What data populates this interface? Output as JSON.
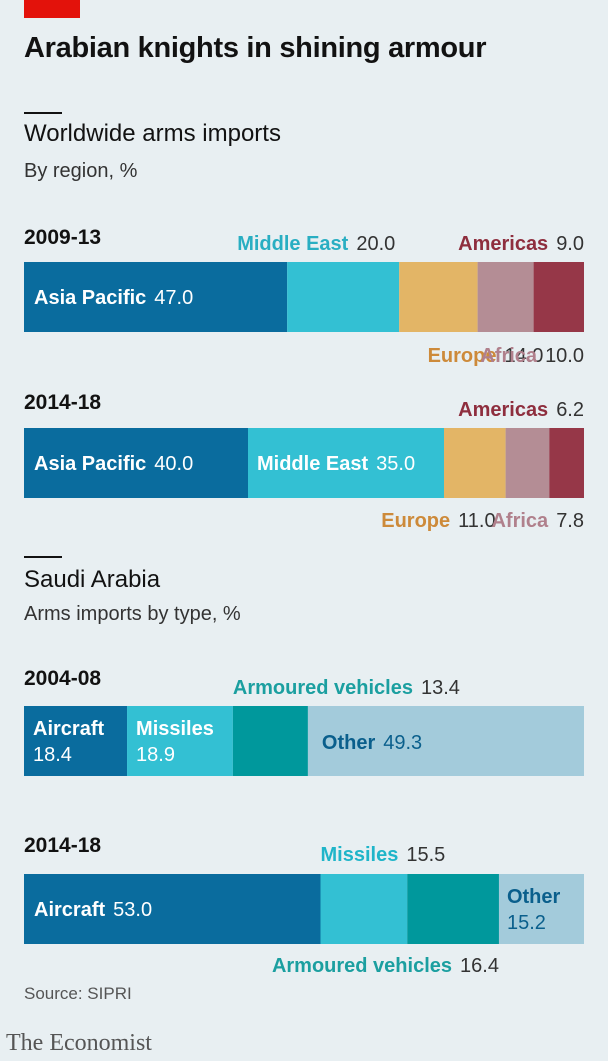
{
  "headline": "Arabian knights in shining armour",
  "footer": {
    "source": "Source: SIPRI",
    "logo": "The Economist"
  },
  "colors": {
    "brand_red": "#e3120b",
    "asia_pacific": "#0a6c9e",
    "middle_east": "#33c0d3",
    "europe": "#e3b566",
    "africa": "#b48d95",
    "americas": "#963748",
    "aircraft": "#0a6c9e",
    "missiles": "#33c0d3",
    "armoured_vehicles": "#00989c",
    "other": "#a3cbdb"
  },
  "chart_data": [
    {
      "type": "bar",
      "title": "Worldwide arms imports",
      "subtitle": "By region, %",
      "stacked": true,
      "orientation": "horizontal",
      "categories": [
        "2009-13",
        "2014-18"
      ],
      "series": [
        {
          "name": "Asia Pacific",
          "values": [
            47.0,
            40.0
          ]
        },
        {
          "name": "Middle East",
          "values": [
            20.0,
            35.0
          ]
        },
        {
          "name": "Europe",
          "values": [
            14.0,
            11.0
          ]
        },
        {
          "name": "Africa",
          "values": [
            10.0,
            7.8
          ]
        },
        {
          "name": "Americas",
          "values": [
            9.0,
            6.2
          ]
        }
      ],
      "value_labels": {
        "2009-13": [
          "47.0",
          "20.0",
          "14.0",
          "10.0",
          "9.0"
        ],
        "2014-18": [
          "40.0",
          "35.0",
          "11.0",
          "7.8",
          "6.2"
        ]
      }
    },
    {
      "type": "bar",
      "title": "Saudi Arabia",
      "subtitle": "Arms imports by type, %",
      "stacked": true,
      "orientation": "horizontal",
      "categories": [
        "2004-08",
        "2014-18"
      ],
      "series": [
        {
          "name": "Aircraft",
          "values": [
            18.4,
            53.0
          ]
        },
        {
          "name": "Missiles",
          "values": [
            18.9,
            15.5
          ]
        },
        {
          "name": "Armoured vehicles",
          "values": [
            13.4,
            16.4
          ]
        },
        {
          "name": "Other",
          "values": [
            49.3,
            15.2
          ]
        }
      ],
      "value_labels": {
        "2004-08": [
          "18.4",
          "18.9",
          "13.4",
          "49.3"
        ],
        "2014-18": [
          "53.0",
          "15.5",
          "16.4",
          "15.2"
        ]
      }
    }
  ]
}
